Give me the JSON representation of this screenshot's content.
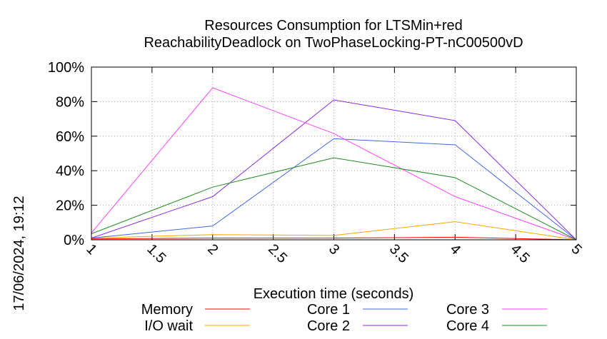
{
  "chart_data": {
    "type": "line",
    "title_lines": [
      "Resources Consumption for LTSMin+red",
      "ReachabilityDeadlock on TwoPhaseLocking-PT-nC00500vD"
    ],
    "xlabel": "Execution time (seconds)",
    "ylabel": "",
    "timestamp": "17/06/2024, 19:12",
    "x": [
      1,
      2,
      3,
      4,
      5
    ],
    "xlim": [
      1,
      5
    ],
    "ylim": [
      0,
      100
    ],
    "xticks": [
      "1",
      "1.5",
      "2",
      "2.5",
      "3",
      "3.5",
      "4",
      "4.5",
      "5"
    ],
    "yticks": [
      "0%",
      "20%",
      "40%",
      "60%",
      "80%",
      "100%"
    ],
    "grid": true,
    "legend_position": "bottom",
    "series": [
      {
        "name": "Memory",
        "color": "#ff0000",
        "values": [
          0.5,
          1,
          1,
          1.5,
          0
        ]
      },
      {
        "name": "I/O wait",
        "color": "#ffa500",
        "values": [
          1,
          3,
          2.5,
          10.5,
          0
        ]
      },
      {
        "name": "Core 1",
        "color": "#4169e1",
        "values": [
          1,
          8,
          58.5,
          55,
          0
        ]
      },
      {
        "name": "Core 2",
        "color": "#8a2be2",
        "values": [
          1,
          25,
          81,
          69,
          0
        ]
      },
      {
        "name": "Core 3",
        "color": "#ff44ff",
        "values": [
          4,
          88,
          61.5,
          25,
          0
        ]
      },
      {
        "name": "Core 4",
        "color": "#228b22",
        "values": [
          3.5,
          30.5,
          47.5,
          36,
          0
        ]
      }
    ]
  }
}
